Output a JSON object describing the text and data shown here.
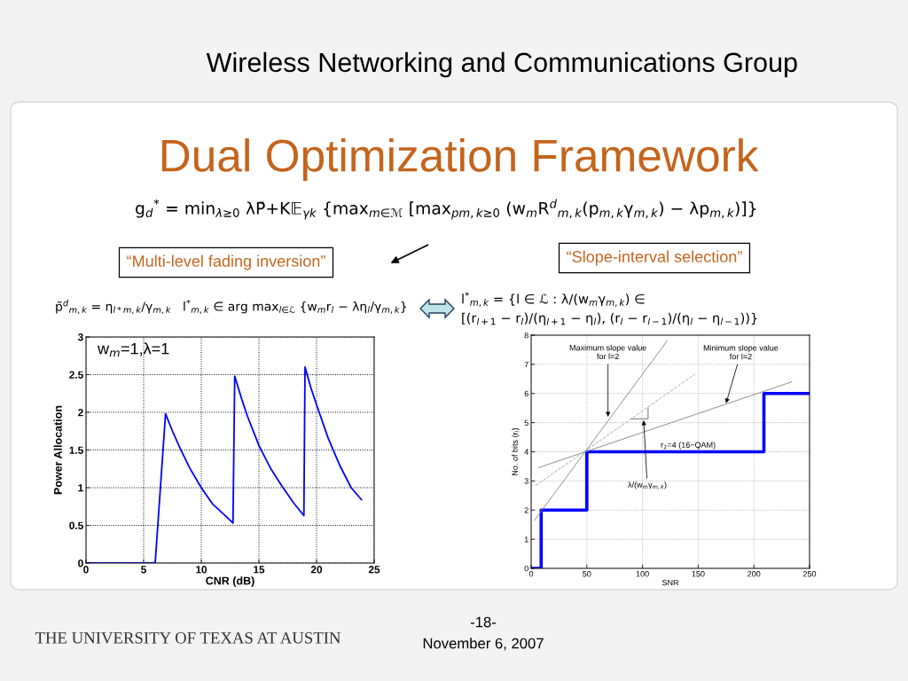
{
  "chart_data": [
    {
      "type": "other",
      "title": "Dual Optimization Framework",
      "subtitle": "Wireless Networking and Communications Group",
      "annotations": [
        "g$_{d}$$^{*}$ = min$_{λ≥0}$ λP̄+K𝔼$_{γk}$ {max$_{m∈ℳ}$ [max$_{pm,k≥0}$ (w$_{m}$R$^{d}$$_{m,k}$(p$_{m,k}$γ$_{m,k}$) − λp$_{m,k}$)]}",
        "“Multi-level fading inversion”",
        "“Slope-interval selection”",
        "p̃$^{d}$$_{m,k}$ = η$_{l*m,k}$/γ$_{m,k}$",
        "l$^{*}$$_{m,k}$ ∈ arg max$_{l∈ℒ}$ {w$_{m}$r$_{l}$ − λη$_{l}$/γ$_{m,k}$}",
        "l$^{*}$$_{m,k}$ = {l ∈ ℒ : λ/(w$_{m}$γ$_{m,k}$) ∈\n[(r$_{l+1}$ − r$_{l}$)/(η$_{l+1}$ − η$_{l}$), (r$_{l}$ − r$_{l−1}$)/(η$_{l}$ − η$_{l−1}$))}",
        "THE UNIVERSITY OF TEXAS AT AUSTIN",
        "-18-",
        "November 6, 2007"
      ]
    },
    {
      "type": "line",
      "xlabel": "CNR (dB)",
      "ylabel": "Power Allocation",
      "xlim": [
        0,
        25
      ],
      "ylim": [
        0,
        3
      ],
      "xticks": [
        0,
        5,
        10,
        15,
        20,
        25
      ],
      "yticks": [
        0,
        0.5,
        1,
        1.5,
        2,
        2.5,
        3
      ],
      "grid": true,
      "annotations": [
        "w$_{m}$=1,λ=1"
      ],
      "series": [
        {
          "color": "#0000ff",
          "x": [
            0,
            6.0,
            6.9,
            7.5,
            8.2,
            9.0,
            10.0,
            11.0,
            12.0,
            12.75,
            12.9,
            13.5,
            14.0,
            15.0,
            16.0,
            17.0,
            18.0,
            18.9,
            19.0,
            19.5,
            20.0,
            21.0,
            22.0,
            23.0,
            23.9
          ],
          "values": [
            0,
            0,
            1.98,
            1.75,
            1.51,
            1.26,
            1.0,
            0.78,
            0.64,
            0.53,
            2.48,
            2.18,
            1.95,
            1.56,
            1.26,
            1.02,
            0.8,
            0.63,
            2.6,
            2.33,
            2.1,
            1.66,
            1.3,
            1.0,
            0.84
          ]
        }
      ]
    },
    {
      "type": "step",
      "xlabel": "SNR",
      "ylabel": "No. of bits (r$_{l}$)",
      "xlim": [
        0,
        250
      ],
      "ylim": [
        0,
        8
      ],
      "xticks": [
        0,
        50,
        100,
        150,
        200,
        250
      ],
      "yticks": [
        0,
        1,
        2,
        3,
        4,
        5,
        6,
        7,
        8
      ],
      "grid": true,
      "annotations": [
        {
          "text": "Maximum slope value\nfor l=2",
          "x": 69,
          "y": 5.2
        },
        {
          "text": "Minimum slope value\nfor l=2",
          "x": 175,
          "y": 5.66
        },
        {
          "text": "λ/(w$_{m}$γ$_{m,k}$)",
          "x": 101,
          "y": 5.08
        },
        {
          "text": "r$_{2}$=4 (16−QAM)",
          "x": 141,
          "y": 4
        }
      ],
      "series": [
        {
          "type": "step",
          "color": "#0000ff",
          "x": [
            0,
            9,
            50,
            209,
            250
          ],
          "values": [
            0,
            2,
            4,
            6,
            6
          ]
        },
        {
          "type": "line",
          "color": "#8c8c8c",
          "x": [
            3,
            122
          ],
          "values": [
            1.65,
            7.8
          ]
        },
        {
          "type": "line",
          "color": "#8c8c8c",
          "x": [
            7,
            234
          ],
          "values": [
            3.46,
            6.4
          ]
        },
        {
          "type": "line",
          "color": "#a8a8a8",
          "line_style": "dashed",
          "x": [
            4,
            147
          ],
          "values": [
            2.84,
            6.66
          ]
        },
        {
          "type": "line",
          "color": "#6e6e6e",
          "x": [
            90,
            105,
            105
          ],
          "values": [
            5.13,
            5.13,
            5.51
          ]
        }
      ]
    }
  ]
}
